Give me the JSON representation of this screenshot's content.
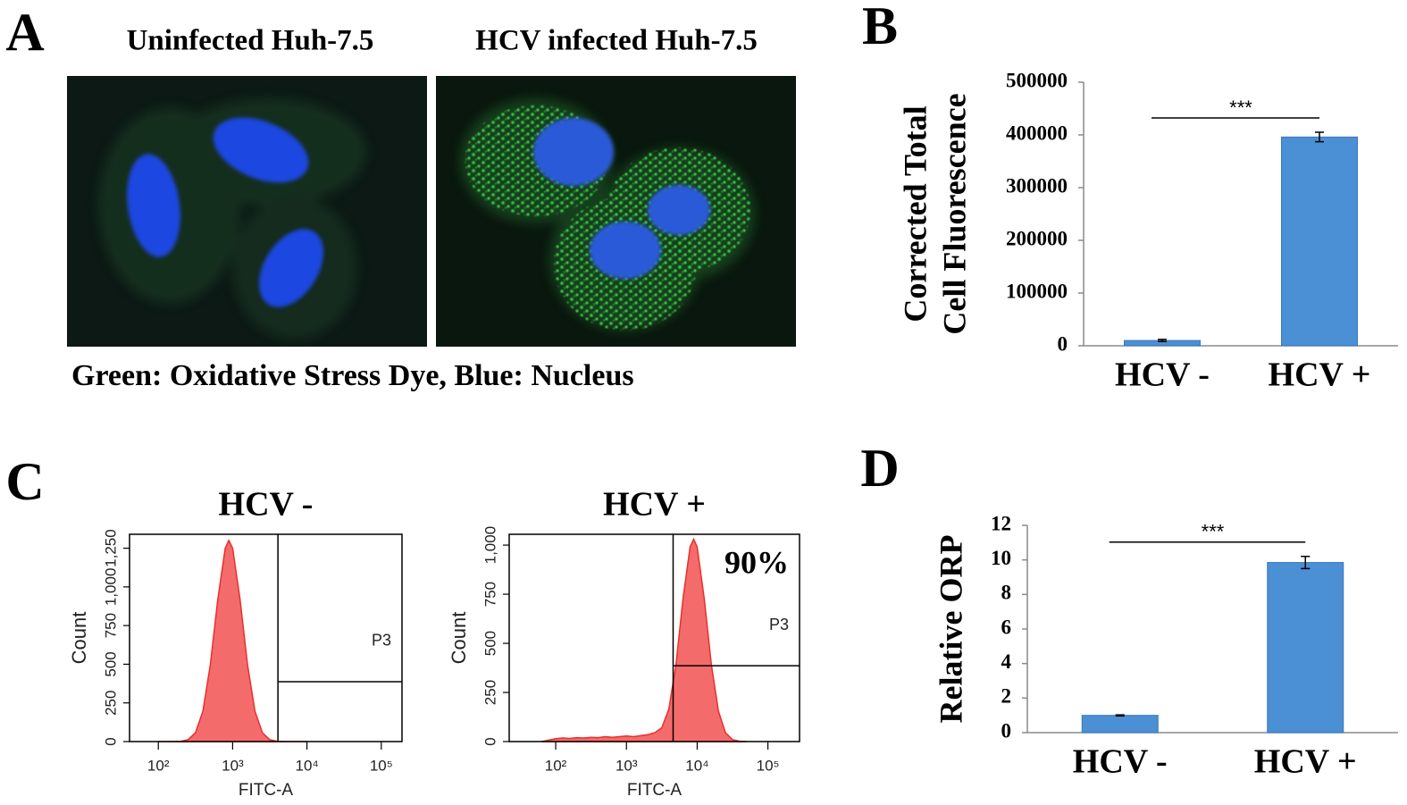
{
  "panel_a": {
    "panel_label": "A",
    "image_titles": [
      "Uninfected Huh-7.5",
      "HCV infected Huh-7.5"
    ],
    "caption": "Green: Oxidative Stress Dye, Blue: Nucleus"
  },
  "chart_data": [
    {
      "type": "bar",
      "panel_label": "B",
      "categories": [
        "HCV -",
        "HCV +"
      ],
      "values": [
        10000,
        396000
      ],
      "errors": [
        2000,
        9000
      ],
      "color": "#4b8fd5",
      "ylabel": [
        "Corrected Total",
        "Cell Fluorescence"
      ],
      "annotation": "***",
      "ylim": [
        0,
        500000
      ],
      "yticks": [
        0,
        100000,
        200000,
        300000,
        400000,
        500000
      ]
    },
    {
      "type": "area",
      "panel_label": "C",
      "title": "HCV -",
      "xlabel": "FITC-A",
      "ylabel": "Count",
      "xscale": "log",
      "color": "#f46b6b",
      "x": [
        100,
        126,
        158,
        200,
        251,
        316,
        398,
        501,
        631,
        794,
        891,
        1000,
        1259,
        1585,
        1995,
        2512,
        3162,
        3981,
        5012,
        6310,
        7943,
        10000
      ],
      "values": [
        0,
        0,
        0,
        2,
        12,
        57,
        196,
        495,
        919,
        1250,
        1300,
        1250,
        919,
        495,
        196,
        57,
        12,
        2,
        0,
        0,
        0,
        0
      ],
      "xlim": [
        41,
        190000
      ],
      "xticks": [
        {
          "value": 100,
          "label": "10²"
        },
        {
          "value": 1000,
          "label": "10³"
        },
        {
          "value": 10000,
          "label": "10⁴"
        },
        {
          "value": 100000,
          "label": "10⁵"
        }
      ],
      "ylim": [
        0,
        1340
      ],
      "yticks": [
        0,
        250,
        500,
        750,
        {
          "value": 1000,
          "label": "1,000"
        },
        {
          "value": 1250,
          "label": "1,250"
        }
      ],
      "gate": {
        "x": 4070,
        "y": 387,
        "label": "P3"
      }
    },
    {
      "type": "area",
      "title": "HCV +",
      "xlabel": "FITC-A",
      "ylabel": "Count",
      "xscale": "log",
      "color": "#f46b6b",
      "annotation": "90%",
      "x": [
        63,
        100,
        126,
        158,
        200,
        251,
        316,
        398,
        501,
        631,
        794,
        1000,
        1259,
        1585,
        1995,
        2512,
        3162,
        3981,
        5012,
        6310,
        7943,
        8913,
        10000,
        12589,
        15849,
        19953,
        25119,
        31623,
        39811,
        50119
      ],
      "values": [
        0,
        15,
        18,
        16,
        20,
        18,
        22,
        20,
        25,
        22,
        25,
        28,
        25,
        30,
        35,
        45,
        70,
        165,
        392,
        728,
        991,
        1030,
        991,
        728,
        392,
        155,
        45,
        10,
        2,
        0
      ],
      "xlim": [
        22,
        280000
      ],
      "xticks": [
        {
          "value": 100,
          "label": "10²"
        },
        {
          "value": 1000,
          "label": "10³"
        },
        {
          "value": 10000,
          "label": "10⁴"
        },
        {
          "value": 100000,
          "label": "10⁵"
        }
      ],
      "ylim": [
        0,
        1055
      ],
      "yticks": [
        0,
        250,
        500,
        750,
        {
          "value": 1000,
          "label": "1,000"
        }
      ],
      "gate": {
        "x": 4570,
        "y": 386,
        "label": "P3"
      }
    },
    {
      "type": "bar",
      "panel_label": "D",
      "categories": [
        "HCV -",
        "HCV +"
      ],
      "values": [
        1,
        9.85
      ],
      "errors": [
        0.03,
        0.35
      ],
      "color": "#4b8fd5",
      "ylabel": [
        "Relative ORP"
      ],
      "annotation": "***",
      "ylim": [
        0,
        12
      ],
      "yticks": [
        0,
        2,
        4,
        6,
        8,
        10,
        12
      ]
    }
  ]
}
